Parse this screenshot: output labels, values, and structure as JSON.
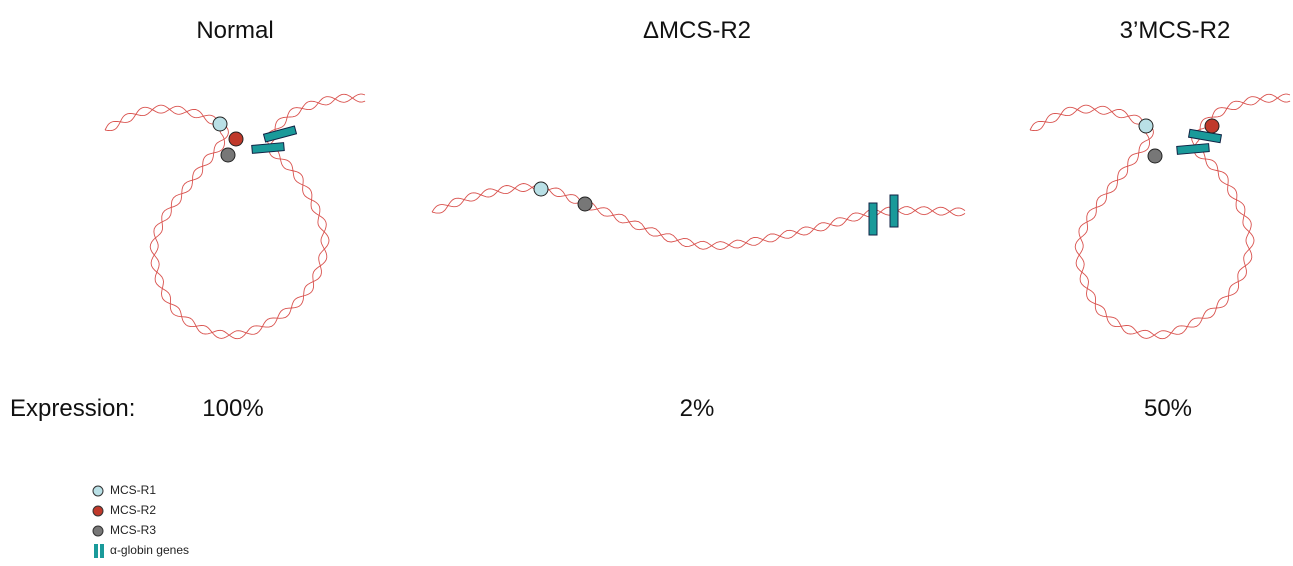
{
  "panels": [
    {
      "title": "Normal",
      "expression": "100%"
    },
    {
      "title": "ΔMCS-R2",
      "expression": "2%"
    },
    {
      "title": "3’MCS-R2",
      "expression": "50%"
    }
  ],
  "expression_label": "Expression:",
  "legend": [
    {
      "label": "MCS-R1",
      "color": "#b9e0e6"
    },
    {
      "label": "MCS-R2",
      "color": "#c0392b"
    },
    {
      "label": "MCS-R3",
      "color": "#777777"
    },
    {
      "label": "α-globin genes",
      "color": "#1a9a9a"
    }
  ]
}
